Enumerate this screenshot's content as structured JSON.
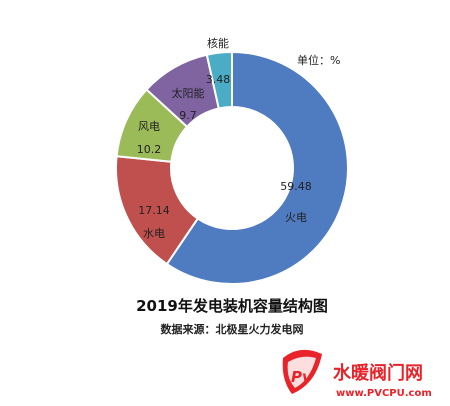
{
  "chart_data": {
    "type": "pie",
    "title": "2019年发电装机容量结构图",
    "subtitle": "数据来源：北极星火力发电网",
    "unit_label": "单位：%",
    "slices": [
      {
        "name": "火电",
        "value": 59.48,
        "color": "#4F7CC0"
      },
      {
        "name": "水电",
        "value": 17.14,
        "color": "#C0504D"
      },
      {
        "name": "风电",
        "value": 10.2,
        "color": "#9BBB59"
      },
      {
        "name": "太阳能",
        "value": 9.7,
        "color": "#8064A2"
      },
      {
        "name": "核能",
        "value": 3.48,
        "color": "#4BACC6"
      }
    ]
  },
  "watermark": {
    "brand_text": "水暖阀门网",
    "url_text": "www.PVCPU.com",
    "logo_letters": "Pv",
    "brand_color": "#E8232A"
  }
}
